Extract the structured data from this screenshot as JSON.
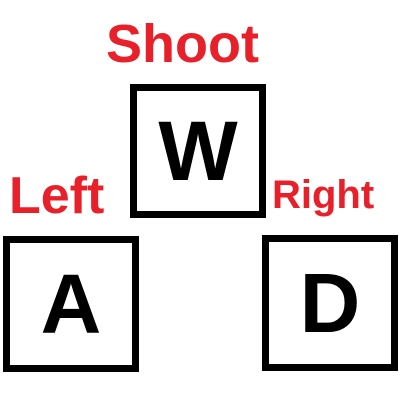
{
  "colors": {
    "label": "#e8202a",
    "key_border": "#000000",
    "key_text": "#000000",
    "background": "#ffffff"
  },
  "controls": {
    "shoot": {
      "key": "W",
      "action": "Shoot"
    },
    "left": {
      "key": "A",
      "action": "Left"
    },
    "right": {
      "key": "D",
      "action": "Right"
    }
  }
}
